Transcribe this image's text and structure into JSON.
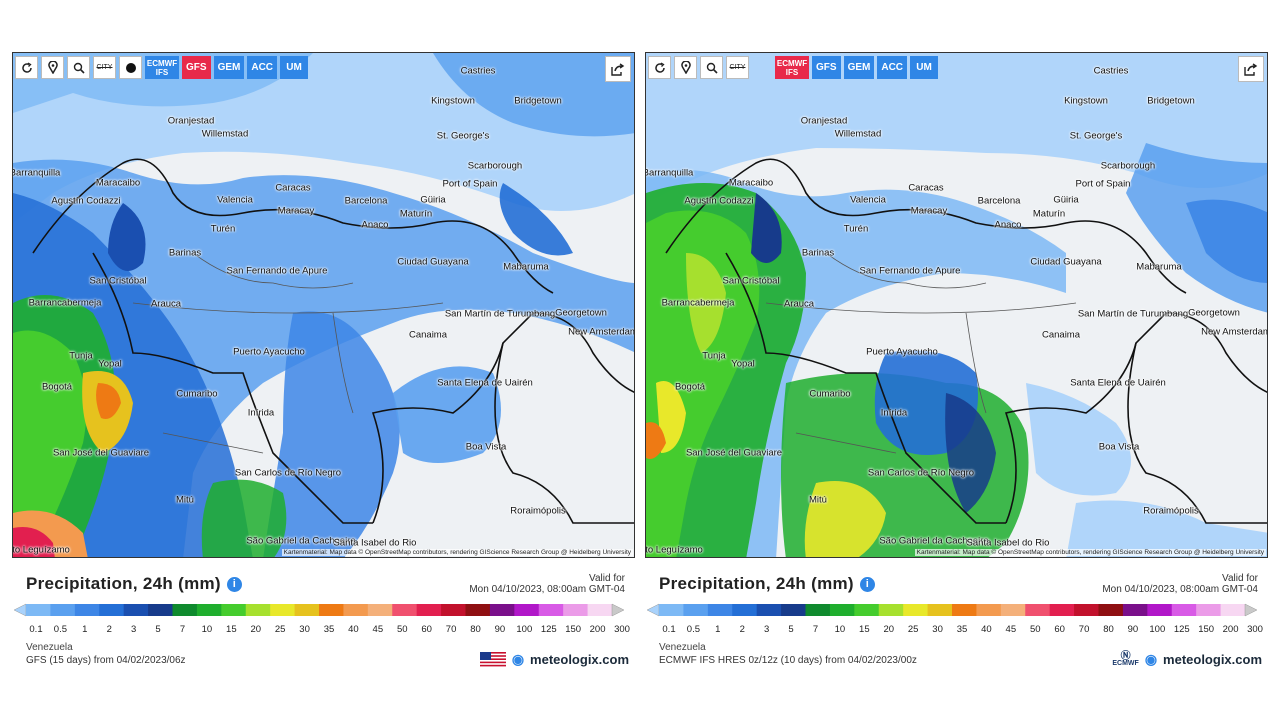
{
  "panels": [
    {
      "id": "left",
      "toolbar": {
        "refresh_icon": "refresh-icon",
        "location_icon": "location-pin-icon",
        "zoom_icon": "zoom-icon",
        "city_label": "CITY",
        "dot_icon": "dot-icon",
        "models": [
          {
            "label": "ECMWF IFS",
            "active": false
          },
          {
            "label": "GFS",
            "active": true
          },
          {
            "label": "GEM",
            "active": false
          },
          {
            "label": "ACC",
            "active": false
          },
          {
            "label": "UM",
            "active": false
          }
        ],
        "share_icon": "share-icon"
      },
      "title": "Precipitation, 24h (mm)",
      "valid_label": "Valid for",
      "valid_time": "Mon 04/10/2023, 08:00am GMT-04",
      "region": "Venezuela",
      "model_run": "GFS (15 days) from 04/02/2023/06z",
      "brand": "meteologix.com",
      "attribution": "Kartenmaterial: Map data © OpenStreetMap contributors, rendering GIScience Research Group @ Heidelberg University"
    },
    {
      "id": "right",
      "toolbar": {
        "refresh_icon": "refresh-icon",
        "location_icon": "location-pin-icon",
        "zoom_icon": "zoom-icon",
        "city_label": "CITY",
        "models": [
          {
            "label": "ECMWF IFS",
            "active": true
          },
          {
            "label": "GFS",
            "active": false
          },
          {
            "label": "GEM",
            "active": false
          },
          {
            "label": "ACC",
            "active": false
          },
          {
            "label": "UM",
            "active": false
          }
        ],
        "share_icon": "share-icon"
      },
      "title": "Precipitation, 24h (mm)",
      "valid_label": "Valid for",
      "valid_time": "Mon 04/10/2023, 08:00am GMT-04",
      "region": "Venezuela",
      "model_run": "ECMWF IFS HRES 0z/12z (10 days) from 04/02/2023/00z",
      "brand": "meteologix.com",
      "partner_logo": "ECMWF",
      "attribution": "Kartenmaterial: Map data © OpenStreetMap contributors, rendering GIScience Research Group @ Heidelberg University"
    }
  ],
  "cities": [
    "Castries",
    "Kingstown",
    "Bridgetown",
    "Oranjestad",
    "Willemstad",
    "St. George's",
    "Scarborough",
    "Port of Spain",
    "Barranquilla",
    "Maracaibo",
    "Caracas",
    "Barcelona",
    "Güiria",
    "Valencia",
    "Maracay",
    "Maturín",
    "Agustín Codazzi",
    "Turén",
    "Anaco",
    "Barinas",
    "San Fernando de Apure",
    "Ciudad Guayana",
    "Mabaruma",
    "San Cristóbal",
    "Barrancabermeja",
    "Arauca",
    "San Martín de Turumbang",
    "Georgetown",
    "New Amsterdam",
    "Canaima",
    "Tunja",
    "Yopal",
    "Puerto Ayacucho",
    "Bogotá",
    "Cumaribo",
    "Santa Elena de Uairén",
    "Inírida",
    "San José del Guaviare",
    "Boa Vista",
    "San Carlos de Río Negro",
    "Mitú",
    "Roraimópolis",
    "São Gabriel da Cachoeira",
    "Santa Isabel do Rio",
    "Puerto Leguízamo"
  ],
  "legend": {
    "ticks": [
      "0.1",
      "0.5",
      "1",
      "2",
      "3",
      "5",
      "7",
      "10",
      "15",
      "20",
      "25",
      "30",
      "35",
      "40",
      "45",
      "50",
      "60",
      "70",
      "80",
      "90",
      "100",
      "125",
      "150",
      "200",
      "300"
    ],
    "colors": [
      "#a9d2fb",
      "#7db9f5",
      "#5aa0ef",
      "#3d86e6",
      "#246fd6",
      "#1a4fb0",
      "#173b8b",
      "#0f8a2e",
      "#1fae2e",
      "#45cc2e",
      "#a6e02e",
      "#e8e82a",
      "#e6c21e",
      "#ee7a14",
      "#f39a4f",
      "#f4b07a",
      "#f0506e",
      "#e21f4f",
      "#c2112c",
      "#8f0f12",
      "#7a0f8a",
      "#b117c9",
      "#d85ae6",
      "#eb9be8",
      "#f7d7f2",
      "#c9c9c9"
    ]
  }
}
